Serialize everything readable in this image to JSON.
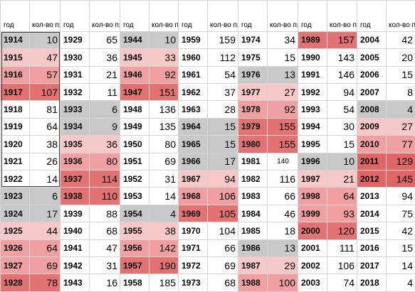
{
  "headers": {
    "year": "год",
    "count": "кол-во пятен"
  },
  "colors": {
    "gray": "#c9c9c9",
    "pink1": "#f7c8c8",
    "pink2": "#f0a0a0",
    "red": "#e37373",
    "red2": "#e06666"
  },
  "columns": [
    {
      "rows": [
        {
          "year": "1914",
          "count": "10",
          "shade": "gray"
        },
        {
          "year": "1915",
          "count": "47",
          "shade": "pink1"
        },
        {
          "year": "1916",
          "count": "57",
          "shade": "pink2"
        },
        {
          "year": "1917",
          "count": "107",
          "shade": "red"
        },
        {
          "year": "1918",
          "count": "81",
          "shade": ""
        },
        {
          "year": "1919",
          "count": "64",
          "shade": ""
        },
        {
          "year": "1920",
          "count": "38",
          "shade": ""
        },
        {
          "year": "1921",
          "count": "26",
          "shade": ""
        },
        {
          "year": "1922",
          "count": "14",
          "shade": ""
        },
        {
          "year": "1923",
          "count": "6",
          "shade": "gray"
        },
        {
          "year": "1924",
          "count": "17",
          "shade": "gray"
        },
        {
          "year": "1925",
          "count": "44",
          "shade": "pink1"
        },
        {
          "year": "1926",
          "count": "64",
          "shade": "pink2"
        },
        {
          "year": "1927",
          "count": "69",
          "shade": "pink2"
        },
        {
          "year": "1928",
          "count": "78",
          "shade": "red"
        }
      ]
    },
    {
      "rows": [
        {
          "year": "1929",
          "count": "65",
          "shade": ""
        },
        {
          "year": "1930",
          "count": "36",
          "shade": ""
        },
        {
          "year": "1931",
          "count": "21",
          "shade": ""
        },
        {
          "year": "1932",
          "count": "11",
          "shade": ""
        },
        {
          "year": "1933",
          "count": "6",
          "shade": "gray"
        },
        {
          "year": "1934",
          "count": "9",
          "shade": "gray"
        },
        {
          "year": "1935",
          "count": "36",
          "shade": "pink1"
        },
        {
          "year": "1936",
          "count": "80",
          "shade": "pink2"
        },
        {
          "year": "1937",
          "count": "114",
          "shade": "red"
        },
        {
          "year": "1938",
          "count": "110",
          "shade": "red"
        },
        {
          "year": "1939",
          "count": "88",
          "shade": ""
        },
        {
          "year": "1940",
          "count": "68",
          "shade": ""
        },
        {
          "year": "1941",
          "count": "47",
          "shade": ""
        },
        {
          "year": "1942",
          "count": "31",
          "shade": ""
        },
        {
          "year": "1943",
          "count": "16",
          "shade": ""
        }
      ]
    },
    {
      "rows": [
        {
          "year": "1944",
          "count": "10",
          "shade": "gray"
        },
        {
          "year": "1945",
          "count": "33",
          "shade": "pink1"
        },
        {
          "year": "1946",
          "count": "92",
          "shade": "pink2"
        },
        {
          "year": "1947",
          "count": "151",
          "shade": "red"
        },
        {
          "year": "1948",
          "count": "136",
          "shade": ""
        },
        {
          "year": "1949",
          "count": "135",
          "shade": ""
        },
        {
          "year": "1950",
          "count": "80",
          "shade": ""
        },
        {
          "year": "1951",
          "count": "69",
          "shade": ""
        },
        {
          "year": "1952",
          "count": "31",
          "shade": ""
        },
        {
          "year": "1953",
          "count": "14",
          "shade": ""
        },
        {
          "year": "1954",
          "count": "4",
          "shade": "gray"
        },
        {
          "year": "1955",
          "count": "38",
          "shade": "pink1"
        },
        {
          "year": "1956",
          "count": "142",
          "shade": "pink2"
        },
        {
          "year": "1957",
          "count": "190",
          "shade": "red"
        },
        {
          "year": "1958",
          "count": "185",
          "shade": ""
        }
      ]
    },
    {
      "rows": [
        {
          "year": "1959",
          "count": "159",
          "shade": ""
        },
        {
          "year": "1960",
          "count": "112",
          "shade": ""
        },
        {
          "year": "1961",
          "count": "54",
          "shade": ""
        },
        {
          "year": "1962",
          "count": "37",
          "shade": ""
        },
        {
          "year": "1963",
          "count": "28",
          "shade": ""
        },
        {
          "year": "1964",
          "count": "15",
          "shade": "gray"
        },
        {
          "year": "1965",
          "count": "15",
          "shade": "gray"
        },
        {
          "year": "1966",
          "count": "17",
          "shade": "gray"
        },
        {
          "year": "1967",
          "count": "94",
          "shade": "pink1"
        },
        {
          "year": "1968",
          "count": "106",
          "shade": "pink2"
        },
        {
          "year": "1969",
          "count": "105",
          "shade": "red"
        },
        {
          "year": "1970",
          "count": "104",
          "shade": ""
        },
        {
          "year": "1971",
          "count": "66",
          "shade": ""
        },
        {
          "year": "1972",
          "count": "69",
          "shade": ""
        },
        {
          "year": "1973",
          "count": "68",
          "shade": ""
        }
      ]
    },
    {
      "rows": [
        {
          "year": "1974",
          "count": "34",
          "shade": ""
        },
        {
          "year": "1975",
          "count": "15",
          "shade": ""
        },
        {
          "year": "1976",
          "count": "13",
          "shade": "gray"
        },
        {
          "year": "1977",
          "count": "27",
          "shade": "pink1"
        },
        {
          "year": "1978",
          "count": "92",
          "shade": "pink2"
        },
        {
          "year": "1979",
          "count": "155",
          "shade": "red"
        },
        {
          "year": "1980",
          "count": "155",
          "shade": "red"
        },
        {
          "year": "1981",
          "count": "140",
          "shade": ""
        },
        {
          "year": "1982",
          "count": "116",
          "shade": ""
        },
        {
          "year": "1983",
          "count": "66",
          "shade": ""
        },
        {
          "year": "1984",
          "count": "46",
          "shade": ""
        },
        {
          "year": "1985",
          "count": "18",
          "shade": ""
        },
        {
          "year": "1986",
          "count": "13",
          "shade": "gray"
        },
        {
          "year": "1987",
          "count": "29",
          "shade": "pink1"
        },
        {
          "year": "1988",
          "count": "100",
          "shade": "pink2"
        }
      ]
    },
    {
      "rows": [
        {
          "year": "1989",
          "count": "157",
          "shade": "red"
        },
        {
          "year": "1990",
          "count": "143",
          "shade": ""
        },
        {
          "year": "1991",
          "count": "146",
          "shade": ""
        },
        {
          "year": "1992",
          "count": "94",
          "shade": ""
        },
        {
          "year": "1993",
          "count": "54",
          "shade": ""
        },
        {
          "year": "1994",
          "count": "30",
          "shade": ""
        },
        {
          "year": "1995",
          "count": "15",
          "shade": ""
        },
        {
          "year": "1996",
          "count": "10",
          "shade": "gray"
        },
        {
          "year": "1997",
          "count": "21",
          "shade": "pink1"
        },
        {
          "year": "1998",
          "count": "64",
          "shade": "pink2"
        },
        {
          "year": "1999",
          "count": "93",
          "shade": "pink2"
        },
        {
          "year": "2000",
          "count": "120",
          "shade": "red"
        },
        {
          "year": "2001",
          "count": "111",
          "shade": ""
        },
        {
          "year": "2002",
          "count": "106",
          "shade": ""
        },
        {
          "year": "2003",
          "count": "74",
          "shade": ""
        }
      ]
    },
    {
      "rows": [
        {
          "year": "2004",
          "count": "42",
          "shade": ""
        },
        {
          "year": "2005",
          "count": "20",
          "shade": ""
        },
        {
          "year": "2006",
          "count": "15",
          "shade": ""
        },
        {
          "year": "2007",
          "count": "8",
          "shade": ""
        },
        {
          "year": "2008",
          "count": "4",
          "shade": "gray"
        },
        {
          "year": "2009",
          "count": "27",
          "shade": "pink1"
        },
        {
          "year": "2010",
          "count": "77",
          "shade": "pink2"
        },
        {
          "year": "2011",
          "count": "129",
          "shade": "red2"
        },
        {
          "year": "2012",
          "count": "145",
          "shade": "red2"
        },
        {
          "year": "2013",
          "count": "94",
          "shade": ""
        },
        {
          "year": "2014",
          "count": "75",
          "shade": ""
        },
        {
          "year": "2015",
          "count": "42",
          "shade": ""
        },
        {
          "year": "2016",
          "count": "15",
          "shade": ""
        },
        {
          "year": "2017",
          "count": "14",
          "shade": ""
        },
        {
          "year": "2018",
          "count": "4",
          "shade": ""
        }
      ]
    }
  ]
}
